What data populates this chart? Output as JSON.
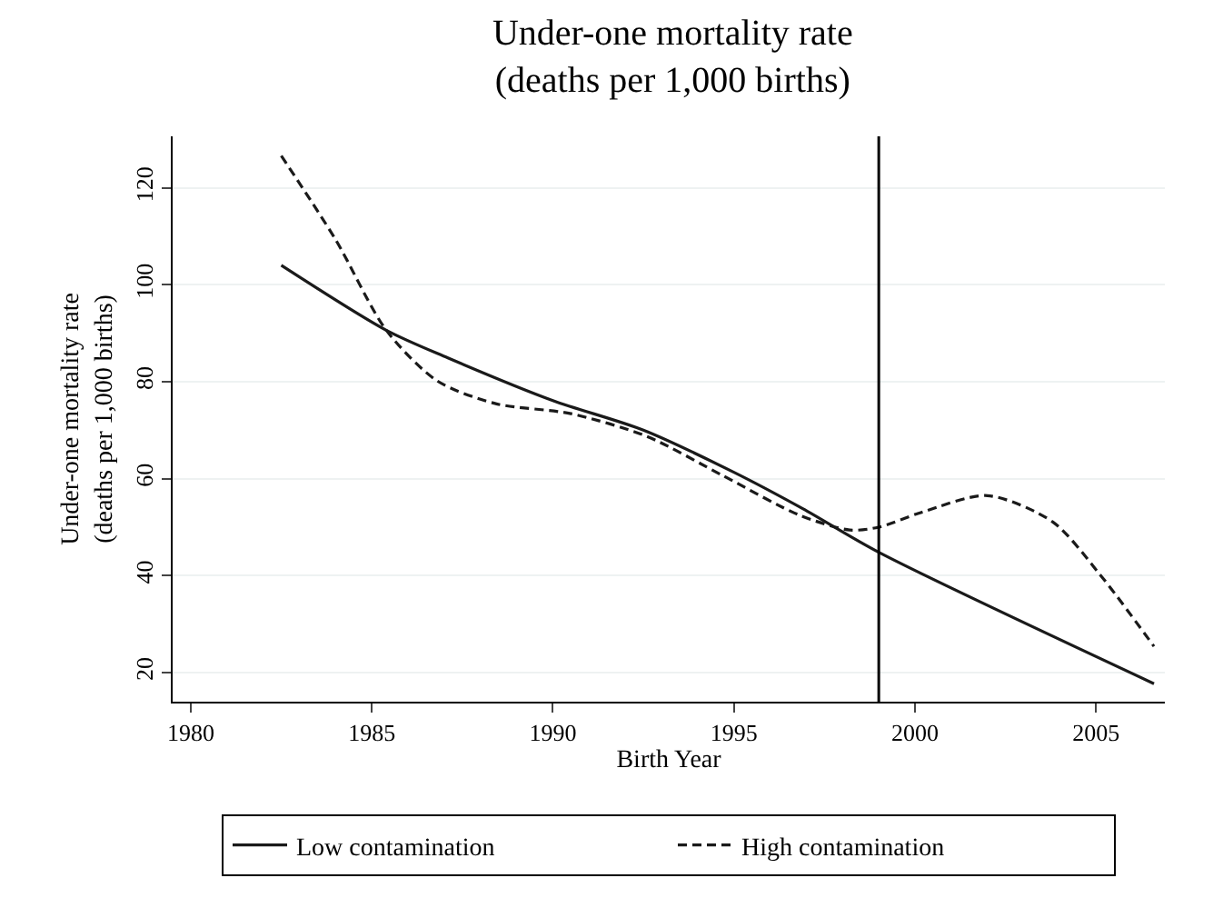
{
  "chart_data": {
    "type": "line",
    "title": "Under-one mortality rate\n(deaths per 1,000 births)",
    "xlabel": "Birth Year",
    "ylabel": "Under-one mortality rate\n(deaths per 1,000 births)",
    "xlim": [
      1979.5,
      2006.9
    ],
    "xticks": [
      1980,
      1985,
      1990,
      1995,
      2000,
      2005
    ],
    "ylim": [
      14,
      130.6
    ],
    "yticks": [
      20,
      40,
      60,
      80,
      100,
      120
    ],
    "grid": "y",
    "legend": "bottom",
    "marker": "none",
    "ref_lines": [
      {
        "axis": "x",
        "value": 1999,
        "color": "#000000"
      }
    ],
    "series": [
      {
        "name": "Low contamination",
        "color": "#1a1a1a",
        "line_style": "solid",
        "x": [
          1982.5,
          1985.4,
          1987.1,
          1990.0,
          1992.5,
          1995.0,
          1996.9,
          1999.0,
          2006.6
        ],
        "values": [
          104.0,
          90.6,
          84.9,
          76.1,
          70.0,
          61.3,
          53.8,
          44.8,
          17.7
        ]
      },
      {
        "name": "High contamination",
        "color": "#1a1a1a",
        "line_style": "dashed",
        "x": [
          1982.5,
          1984.0,
          1985.4,
          1986.8,
          1988.4,
          1990.5,
          1992.6,
          1994.7,
          1996.8,
          1998.2,
          1999.0,
          2000.2,
          2002.0,
          2003.8,
          2005.1,
          2006.6
        ],
        "values": [
          126.6,
          109.3,
          90.6,
          80.2,
          75.5,
          73.4,
          68.7,
          60.6,
          52.5,
          49.4,
          50.0,
          53.1,
          56.5,
          51.1,
          40.3,
          25.4
        ]
      }
    ]
  }
}
